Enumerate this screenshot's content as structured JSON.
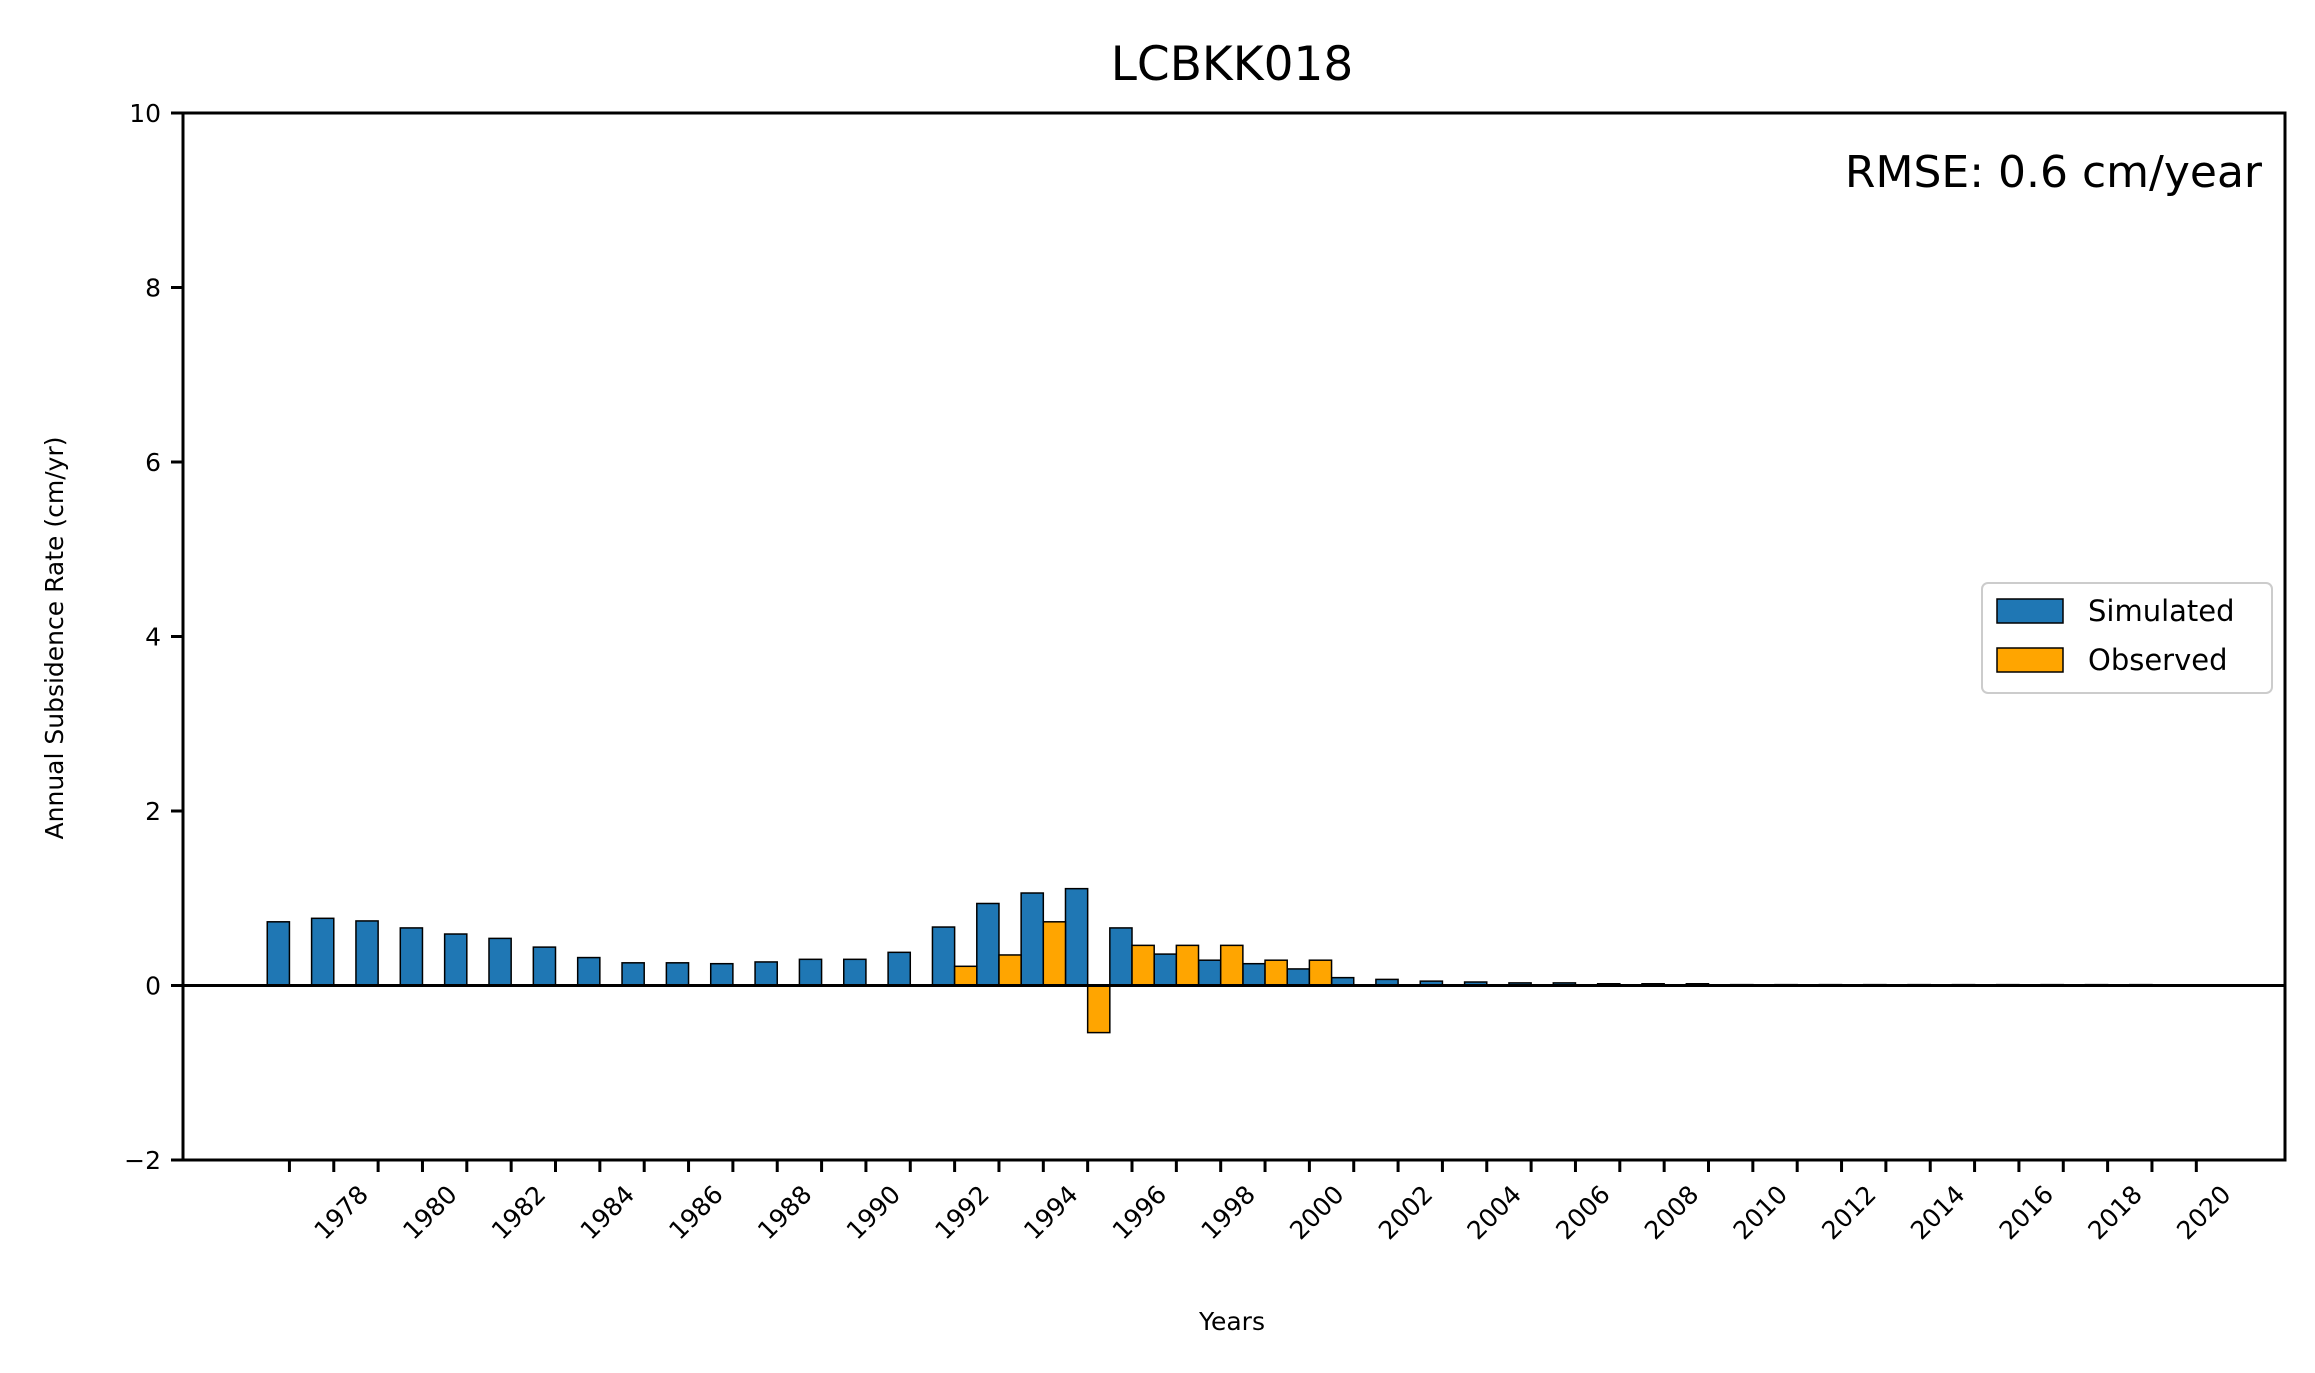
{
  "chart_data": {
    "type": "bar",
    "title": "LCBKK018",
    "annotation": "RMSE: 0.6 cm/year",
    "xlabel": "Years",
    "ylabel": "Annual Subsidence Rate (cm/yr)",
    "ylim": [
      -2,
      10
    ],
    "yticks": [
      -2,
      0,
      2,
      4,
      6,
      8,
      10
    ],
    "ytick_labels": [
      "−2",
      "0",
      "2",
      "4",
      "6",
      "8",
      "10"
    ],
    "xlim": [
      1974.6,
      2022.0
    ],
    "xticks_minor": [
      1977,
      1978,
      1979,
      1980,
      1981,
      1982,
      1983,
      1984,
      1985,
      1986,
      1987,
      1988,
      1989,
      1990,
      1991,
      1992,
      1993,
      1994,
      1995,
      1996,
      1997,
      1998,
      1999,
      2000,
      2001,
      2002,
      2003,
      2004,
      2005,
      2006,
      2007,
      2008,
      2009,
      2010,
      2011,
      2012,
      2013,
      2014,
      2015,
      2016,
      2017,
      2018,
      2019,
      2020
    ],
    "xtick_labels": [
      "1978",
      "1980",
      "1982",
      "1984",
      "1986",
      "1988",
      "1990",
      "1992",
      "1994",
      "1996",
      "1998",
      "2000",
      "2002",
      "2004",
      "2006",
      "2008",
      "2010",
      "2012",
      "2014",
      "2016",
      "2018",
      "2020"
    ],
    "legend": {
      "position": "center-right"
    },
    "grid": false,
    "series": [
      {
        "name": "Simulated",
        "color": "#1f77b4",
        "x": [
          1977,
          1978,
          1979,
          1980,
          1981,
          1982,
          1983,
          1984,
          1985,
          1986,
          1987,
          1988,
          1989,
          1990,
          1991,
          1992,
          1993,
          1994,
          1995,
          1996,
          1997,
          1998,
          1999,
          2000,
          2001,
          2002,
          2003,
          2004,
          2005,
          2006,
          2007,
          2008,
          2009,
          2010,
          2011,
          2012,
          2013,
          2014,
          2015,
          2016,
          2017,
          2018,
          2019,
          2020
        ],
        "values": [
          0.73,
          0.77,
          0.74,
          0.66,
          0.59,
          0.54,
          0.44,
          0.32,
          0.26,
          0.26,
          0.25,
          0.27,
          0.3,
          0.3,
          0.38,
          0.67,
          0.94,
          1.06,
          1.11,
          0.66,
          0.36,
          0.29,
          0.25,
          0.19,
          0.09,
          0.07,
          0.05,
          0.04,
          0.03,
          0.03,
          0.02,
          0.02,
          0.02,
          0.01,
          0.01,
          0.01,
          0.01,
          0.01,
          0.01,
          0.01,
          0.01,
          0.01,
          0.01,
          0.0
        ]
      },
      {
        "name": "Observed",
        "color": "#ffa500",
        "x": [
          1992,
          1993,
          1994,
          1995,
          1996,
          1997,
          1998,
          1999,
          2000,
          2001
        ],
        "values": [
          0.22,
          0.35,
          0.73,
          -0.54,
          0.46,
          0.46,
          0.46,
          0.29,
          0.29,
          0.0
        ]
      }
    ]
  }
}
